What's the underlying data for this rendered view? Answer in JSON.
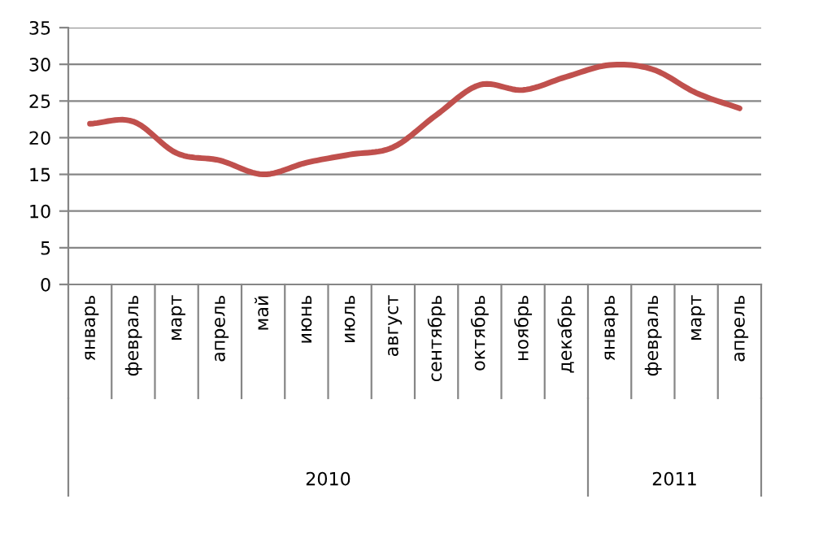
{
  "chart_data": {
    "type": "line",
    "categories": [
      "январь",
      "февраль",
      "март",
      "апрель",
      "май",
      "июнь",
      "июль",
      "август",
      "сентябрь",
      "октябрь",
      "ноябрь",
      "декабрь",
      "январь",
      "февраль",
      "март",
      "апрель"
    ],
    "series": [
      {
        "color": "#c0504d",
        "values": [
          21.9,
          22.2,
          17.9,
          16.9,
          15.0,
          16.6,
          17.7,
          18.7,
          23.1,
          27.2,
          26.5,
          28.3,
          29.9,
          29.3,
          26.1,
          24.0
        ]
      }
    ],
    "ylim": [
      0,
      35
    ],
    "yticks": [
      0,
      5,
      10,
      15,
      20,
      25,
      30,
      35
    ],
    "grid": "y",
    "legend": false,
    "marker": "none",
    "line_style": "solid",
    "annotations": [
      "2010",
      "2011"
    ]
  }
}
